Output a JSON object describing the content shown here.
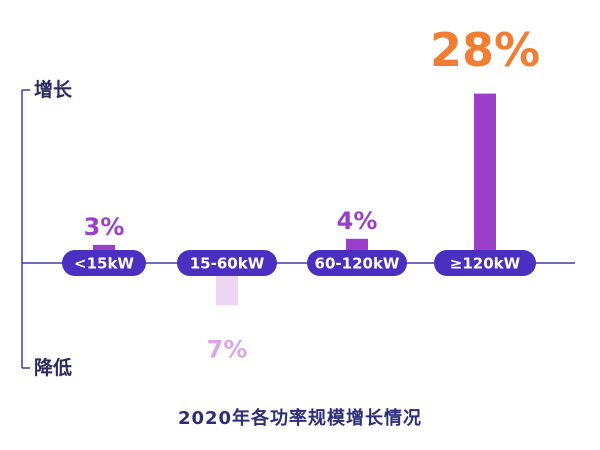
{
  "chart_data": {
    "type": "bar",
    "title": "2020年各功率规模增长情况",
    "axis_top_label": "增长",
    "axis_bottom_label": "降低",
    "categories": [
      "<15kW",
      "15-60kW",
      "60-120kW",
      "≥120kW"
    ],
    "values": [
      3,
      -7,
      4,
      28
    ],
    "value_labels": [
      "3%",
      "7%",
      "4%",
      "28%"
    ],
    "ylim": [
      -10,
      30
    ],
    "grid": false,
    "colors": {
      "positive_bar": "#9b3fc9",
      "negative_bar": "#ecd6f2",
      "negative_label": "#d9a6e6",
      "pill": "#4a2fc0",
      "highlight_label": "#f07f35",
      "axis": "#3f3fa0"
    }
  }
}
